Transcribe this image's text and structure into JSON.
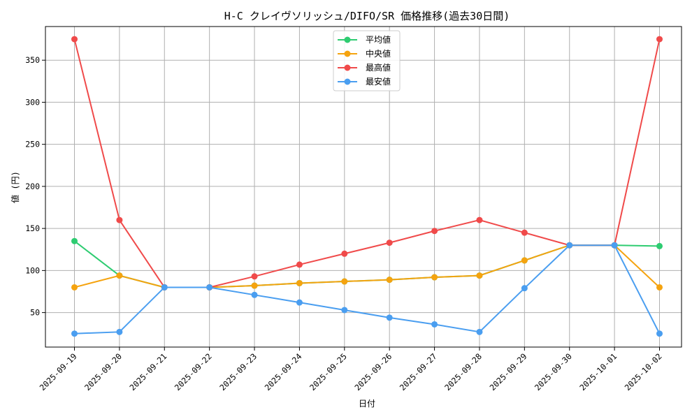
{
  "chart_data": {
    "type": "line",
    "title": "H-C クレイヴソリッシュ/DIFO/SR 価格推移(過去30日間)",
    "xlabel": "日付",
    "ylabel": "値 (円)",
    "categories": [
      "2025-09-19",
      "2025-09-20",
      "2025-09-21",
      "2025-09-22",
      "2025-09-23",
      "2025-09-24",
      "2025-09-25",
      "2025-09-26",
      "2025-09-27",
      "2025-09-28",
      "2025-09-29",
      "2025-09-30",
      "2025-10-01",
      "2025-10-02"
    ],
    "ylim": [
      9,
      390
    ],
    "yticks": [
      50,
      100,
      150,
      200,
      250,
      300,
      350
    ],
    "grid": true,
    "legend_position": "top-center",
    "series": [
      {
        "name": "平均値",
        "color": "#2ecc71",
        "values": [
          135,
          94,
          80,
          80,
          82,
          85,
          87,
          89,
          92,
          94,
          112,
          130,
          130,
          129
        ]
      },
      {
        "name": "中央値",
        "color": "#f5a30f",
        "values": [
          80,
          94,
          80,
          80,
          82,
          85,
          87,
          89,
          92,
          94,
          112,
          130,
          130,
          80
        ]
      },
      {
        "name": "最高値",
        "color": "#f04a4a",
        "values": [
          375,
          160,
          80,
          80,
          93,
          107,
          120,
          133,
          147,
          160,
          145,
          130,
          130,
          375
        ]
      },
      {
        "name": "最安値",
        "color": "#4a9ef0",
        "values": [
          25,
          27,
          80,
          80,
          71,
          62,
          53,
          44,
          36,
          27,
          79,
          130,
          130,
          25
        ]
      }
    ]
  }
}
